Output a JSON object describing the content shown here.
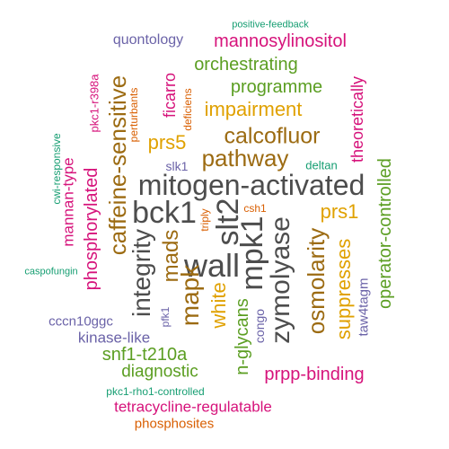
{
  "palette": {
    "gray": "#4d4d4d",
    "brown": "#9c6b12",
    "gold": "#e0a100",
    "green": "#5b9e22",
    "magenta": "#d6137b",
    "purple": "#6b63a8",
    "teal": "#169e72",
    "orange": "#d95f02"
  },
  "words": [
    "positive-feedback",
    "quontology",
    "mannosylinositol",
    "caffeine-sensitive",
    "orchestrating",
    "pkc1-r398a",
    "perturbants",
    "ficarro",
    "deficiens",
    "programme",
    "impairment",
    "theoretically",
    "cwi-responsive",
    "calcofluor",
    "prs5",
    "mannan-type",
    "phosphorylated",
    "pathway",
    "operator-controlled",
    "slk1",
    "deltan",
    "mitogen-activated",
    "bck1",
    "csh1",
    "triply",
    "slt2",
    "prs1",
    "caspofungin",
    "integrity",
    "mads",
    "wall",
    "mpk1",
    "zymolyase",
    "osmolarity",
    "mapk",
    "white",
    "n-glycans",
    "suppresses",
    "taw4tagm",
    "congo",
    "pfk1",
    "cccn10ggc",
    "kinase-like",
    "snf1-t210a",
    "diagnostic",
    "prpp-binding",
    "pkc1-rho1-controlled",
    "tetracycline-regulatable",
    "phosphosites"
  ]
}
